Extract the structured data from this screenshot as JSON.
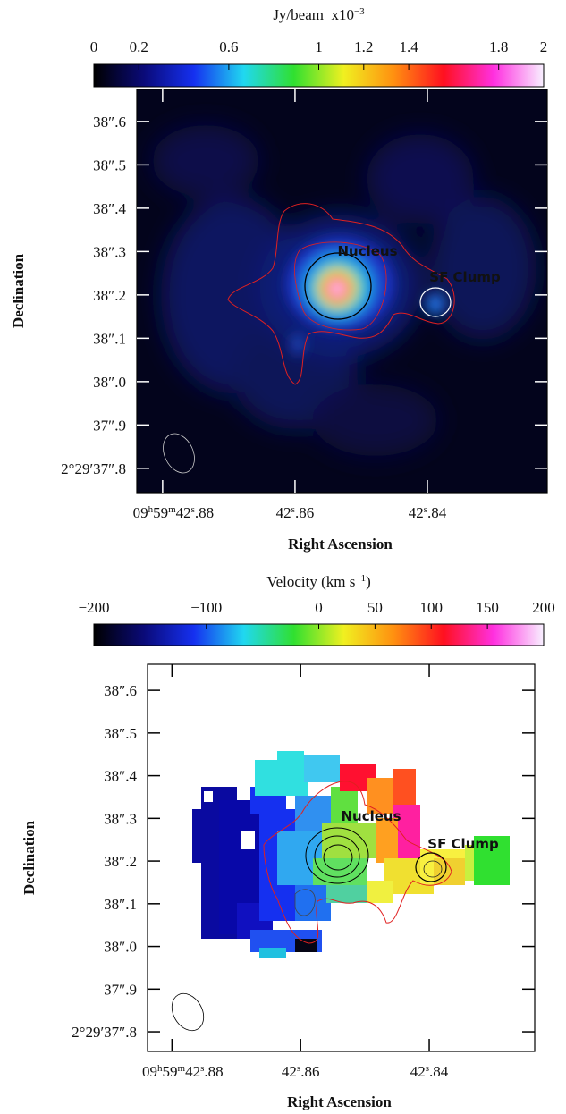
{
  "chart_data": [
    {
      "type": "image",
      "colorbar": {
        "label": [
          "Jy/beam  x10",
          "−3"
        ],
        "lim": [
          0,
          2
        ],
        "ticks": [
          0,
          0.2,
          0.6,
          1,
          1.2,
          1.4,
          1.8,
          2
        ],
        "colormap": [
          "#000000",
          "#0a0a78",
          "#1530f0",
          "#20d8f0",
          "#30e030",
          "#f0f020",
          "#ff9010",
          "#ff1020",
          "#ff30e0",
          "#f8f0ff"
        ]
      },
      "xlabel": "Right Ascension",
      "ylabel": "Declination",
      "xlim": [
        42.8839,
        42.8219
      ],
      "ylim": [
        37.744,
        38.674
      ],
      "xticks": [
        {
          "value": 42.88,
          "label": [
            "09",
            "h",
            "59",
            "m",
            "42",
            "s",
            ".88"
          ]
        },
        {
          "value": 42.86,
          "label": [
            "42",
            "s",
            ".86"
          ]
        },
        {
          "value": 42.84,
          "label": [
            "42",
            "s",
            ".84"
          ]
        }
      ],
      "yticks": [
        {
          "value": 37.8,
          "label": "2°29′37″.8"
        },
        {
          "value": 37.9,
          "label": "37″.9"
        },
        {
          "value": 38.0,
          "label": "38″.0"
        },
        {
          "value": 38.1,
          "label": "38″.1"
        },
        {
          "value": 38.2,
          "label": "38″.2"
        },
        {
          "value": 38.3,
          "label": "38″.3"
        },
        {
          "value": 38.4,
          "label": "38″.4"
        },
        {
          "value": 38.5,
          "label": "38″.5"
        },
        {
          "value": 38.6,
          "label": "38″.6"
        }
      ],
      "annotations": [
        "Nucleus",
        "SF Clump"
      ]
    },
    {
      "type": "image",
      "colorbar": {
        "label": [
          "Velocity (km s",
          "−1",
          ")"
        ],
        "lim": [
          -200,
          200
        ],
        "ticks": [
          {
            "value": -200,
            "label": "−200"
          },
          {
            "value": -100,
            "label": "−100"
          },
          0,
          50,
          100,
          150,
          200
        ],
        "colormap": [
          "#000000",
          "#0a0a78",
          "#1530f0",
          "#20d8f0",
          "#30e030",
          "#f0f020",
          "#ff9010",
          "#ff1020",
          "#ff30e0",
          "#f8f0ff"
        ]
      },
      "xlabel": "Right Ascension",
      "ylabel": "Declination",
      "xlim": [
        42.8838,
        42.8236
      ],
      "ylim": [
        37.754,
        38.661
      ],
      "xticks": [
        {
          "value": 42.88,
          "label": [
            "09",
            "h",
            "59",
            "m",
            "42",
            "s",
            ".88"
          ]
        },
        {
          "value": 42.86,
          "label": [
            "42",
            "s",
            ".86"
          ]
        },
        {
          "value": 42.84,
          "label": [
            "42",
            "s",
            ".84"
          ]
        }
      ],
      "yticks": [
        {
          "value": 37.8,
          "label": "2°29′37″.8"
        },
        {
          "value": 37.9,
          "label": "37″.9"
        },
        {
          "value": 38.0,
          "label": "38″.0"
        },
        {
          "value": 38.1,
          "label": "38″.1"
        },
        {
          "value": 38.2,
          "label": "38″.2"
        },
        {
          "value": 38.3,
          "label": "38″.3"
        },
        {
          "value": 38.4,
          "label": "38″.4"
        },
        {
          "value": 38.5,
          "label": "38″.5"
        },
        {
          "value": 38.6,
          "label": "38″.6"
        }
      ],
      "annotations": [
        "Nucleus",
        "SF Clump"
      ]
    }
  ]
}
